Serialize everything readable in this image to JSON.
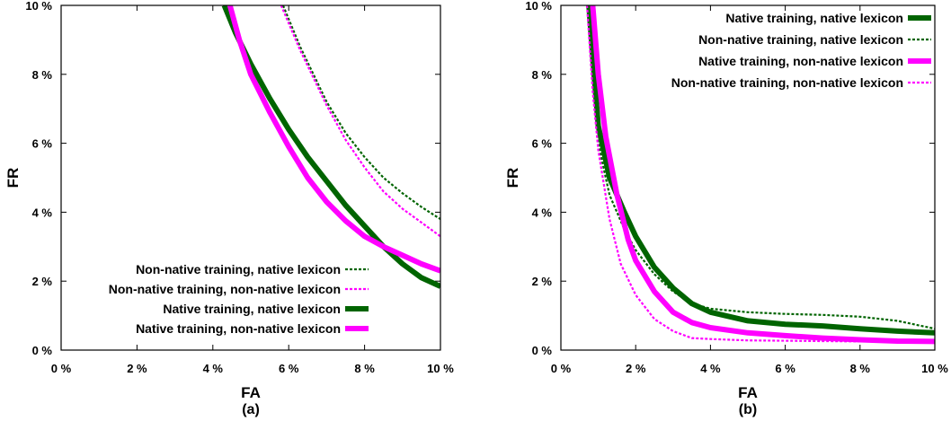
{
  "chart_data": [
    {
      "id": "a",
      "type": "line",
      "caption": "(a)",
      "xlabel": "FA",
      "ylabel": "FR",
      "xlim": [
        0,
        10
      ],
      "ylim": [
        0,
        10
      ],
      "xticks": [
        "0 %",
        "2 %",
        "4 %",
        "6 %",
        "8 %",
        "10 %"
      ],
      "yticks": [
        "0 %",
        "2 %",
        "4 %",
        "6 %",
        "8 %",
        "10 %"
      ],
      "legend_position": "bottom-left",
      "series": [
        {
          "name": "Non-native training, native lexicon",
          "color": "#006400",
          "style": "dotted",
          "width": 2.2,
          "points": [
            [
              5.85,
              10.0
            ],
            [
              6.3,
              8.8
            ],
            [
              7.0,
              7.2
            ],
            [
              7.5,
              6.3
            ],
            [
              8.0,
              5.6
            ],
            [
              8.5,
              5.0
            ],
            [
              9.0,
              4.55
            ],
            [
              9.5,
              4.15
            ],
            [
              10.0,
              3.8
            ]
          ]
        },
        {
          "name": "Non-native training, non-native lexicon",
          "color": "#ff00ff",
          "style": "dotted",
          "width": 2.2,
          "points": [
            [
              5.8,
              10.0
            ],
            [
              6.3,
              8.7
            ],
            [
              7.0,
              7.1
            ],
            [
              7.5,
              6.1
            ],
            [
              8.0,
              5.3
            ],
            [
              8.5,
              4.6
            ],
            [
              9.0,
              4.1
            ],
            [
              9.5,
              3.7
            ],
            [
              10.0,
              3.3
            ]
          ]
        },
        {
          "name": "Native training, native lexicon",
          "color": "#006400",
          "style": "solid",
          "width": 6,
          "points": [
            [
              4.3,
              10.0
            ],
            [
              4.6,
              9.2
            ],
            [
              5.0,
              8.3
            ],
            [
              5.5,
              7.3
            ],
            [
              6.0,
              6.4
            ],
            [
              6.5,
              5.6
            ],
            [
              7.0,
              4.9
            ],
            [
              7.5,
              4.2
            ],
            [
              8.0,
              3.6
            ],
            [
              8.5,
              3.0
            ],
            [
              9.0,
              2.5
            ],
            [
              9.5,
              2.1
            ],
            [
              10.0,
              1.85
            ]
          ]
        },
        {
          "name": "Native training, non-native lexicon",
          "color": "#ff00ff",
          "style": "solid",
          "width": 6,
          "points": [
            [
              4.45,
              10.0
            ],
            [
              4.7,
              9.0
            ],
            [
              5.0,
              8.0
            ],
            [
              5.5,
              6.9
            ],
            [
              6.0,
              5.9
            ],
            [
              6.5,
              5.0
            ],
            [
              7.0,
              4.3
            ],
            [
              7.5,
              3.75
            ],
            [
              8.0,
              3.3
            ],
            [
              8.5,
              3.0
            ],
            [
              9.0,
              2.75
            ],
            [
              9.5,
              2.5
            ],
            [
              10.0,
              2.3
            ]
          ]
        }
      ]
    },
    {
      "id": "b",
      "type": "line",
      "caption": "(b)",
      "xlabel": "FA",
      "ylabel": "FR",
      "xlim": [
        0,
        10
      ],
      "ylim": [
        0,
        10
      ],
      "xticks": [
        "0 %",
        "2 %",
        "4 %",
        "6 %",
        "8 %",
        "10 %"
      ],
      "yticks": [
        "0 %",
        "2 %",
        "4 %",
        "6 %",
        "8 %",
        "10 %"
      ],
      "legend_position": "top-right",
      "series": [
        {
          "name": "Native training, native lexicon",
          "color": "#006400",
          "style": "solid",
          "width": 6,
          "points": [
            [
              0.75,
              10.0
            ],
            [
              0.85,
              8.5
            ],
            [
              1.0,
              6.5
            ],
            [
              1.3,
              5.0
            ],
            [
              1.7,
              4.0
            ],
            [
              2.0,
              3.3
            ],
            [
              2.5,
              2.4
            ],
            [
              3.0,
              1.8
            ],
            [
              3.5,
              1.35
            ],
            [
              4.0,
              1.1
            ],
            [
              5.0,
              0.85
            ],
            [
              6.0,
              0.75
            ],
            [
              7.0,
              0.7
            ],
            [
              8.0,
              0.62
            ],
            [
              9.0,
              0.55
            ],
            [
              10.0,
              0.5
            ]
          ]
        },
        {
          "name": "Non-native training, native lexicon",
          "color": "#006400",
          "style": "dotted",
          "width": 2.2,
          "points": [
            [
              0.7,
              10.0
            ],
            [
              0.85,
              8.0
            ],
            [
              1.0,
              6.0
            ],
            [
              1.3,
              4.5
            ],
            [
              1.7,
              3.5
            ],
            [
              2.0,
              2.9
            ],
            [
              2.5,
              2.2
            ],
            [
              3.0,
              1.7
            ],
            [
              3.5,
              1.35
            ],
            [
              4.0,
              1.2
            ],
            [
              5.0,
              1.1
            ],
            [
              6.0,
              1.05
            ],
            [
              7.0,
              1.02
            ],
            [
              8.0,
              0.97
            ],
            [
              9.0,
              0.85
            ],
            [
              10.0,
              0.62
            ]
          ]
        },
        {
          "name": "Native training, non-native lexicon",
          "color": "#ff00ff",
          "style": "solid",
          "width": 6,
          "points": [
            [
              0.85,
              10.0
            ],
            [
              1.0,
              8.0
            ],
            [
              1.2,
              6.2
            ],
            [
              1.5,
              4.5
            ],
            [
              1.8,
              3.2
            ],
            [
              2.0,
              2.6
            ],
            [
              2.5,
              1.7
            ],
            [
              3.0,
              1.1
            ],
            [
              3.5,
              0.8
            ],
            [
              4.0,
              0.65
            ],
            [
              5.0,
              0.5
            ],
            [
              6.0,
              0.42
            ],
            [
              7.0,
              0.35
            ],
            [
              8.0,
              0.3
            ],
            [
              9.0,
              0.26
            ],
            [
              10.0,
              0.25
            ]
          ]
        },
        {
          "name": "Non-native training, non-native lexicon",
          "color": "#ff00ff",
          "style": "dotted",
          "width": 2.2,
          "points": [
            [
              0.7,
              10.0
            ],
            [
              0.85,
              7.5
            ],
            [
              1.0,
              5.8
            ],
            [
              1.3,
              3.8
            ],
            [
              1.6,
              2.5
            ],
            [
              2.0,
              1.6
            ],
            [
              2.5,
              0.9
            ],
            [
              3.0,
              0.55
            ],
            [
              3.5,
              0.35
            ],
            [
              4.0,
              0.32
            ],
            [
              5.0,
              0.28
            ],
            [
              6.0,
              0.27
            ],
            [
              8.0,
              0.25
            ],
            [
              10.0,
              0.25
            ]
          ]
        }
      ]
    }
  ]
}
